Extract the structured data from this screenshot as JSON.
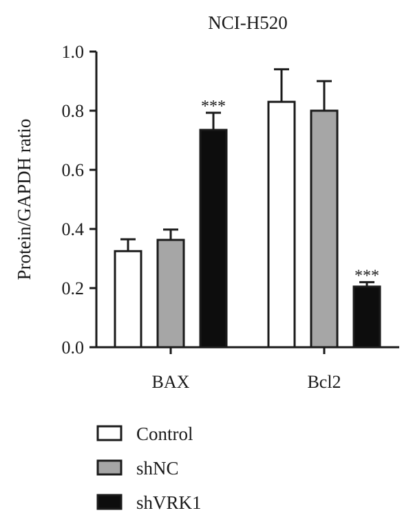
{
  "chart_data": {
    "type": "bar",
    "title": "NCI-H520",
    "xlabel": "",
    "ylabel": "Protein/GAPDH ratio",
    "ylim": [
      0,
      1.0
    ],
    "yticks": [
      "0.0",
      "0.2",
      "0.4",
      "0.6",
      "0.8",
      "1.0"
    ],
    "grid": false,
    "legend_position": "bottom-left",
    "categories": [
      "BAX",
      "Bcl2"
    ],
    "series": [
      {
        "name": "Control",
        "values": [
          0.325,
          0.83
        ],
        "errors": [
          0.04,
          0.11
        ],
        "color": "#ffffff"
      },
      {
        "name": "shNC",
        "values": [
          0.363,
          0.8
        ],
        "errors": [
          0.035,
          0.1
        ],
        "color": "#a6a6a6"
      },
      {
        "name": "shVRK1",
        "values": [
          0.735,
          0.205
        ],
        "errors": [
          0.058,
          0.015
        ],
        "color": "#0d0d0d"
      }
    ],
    "annotations": [
      {
        "category": "BAX",
        "series": "shVRK1",
        "text": "***"
      },
      {
        "category": "Bcl2",
        "series": "shVRK1",
        "text": "***"
      }
    ]
  }
}
